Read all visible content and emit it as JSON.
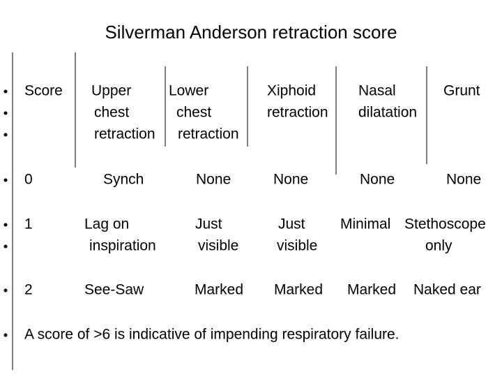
{
  "title": "Silverman Anderson retraction score",
  "table": {
    "header": [
      [
        "Score"
      ],
      [
        "Upper",
        "chest",
        "retraction"
      ],
      [
        "Lower",
        "chest",
        "retraction"
      ],
      [
        "Xiphoid",
        "retraction"
      ],
      [
        "Nasal",
        "dilatation"
      ],
      [
        "Grunt"
      ]
    ],
    "rows": [
      [
        [
          "0"
        ],
        [
          "Synch"
        ],
        [
          "None"
        ],
        [
          "None"
        ],
        [
          "None"
        ],
        [
          "None"
        ]
      ],
      [
        [
          "1"
        ],
        [
          "Lag on",
          "inspiration"
        ],
        [
          "Just",
          "visible"
        ],
        [
          "Just",
          "visible"
        ],
        [
          "Minimal"
        ],
        [
          "Stethoscope",
          "only"
        ]
      ],
      [
        [
          "2"
        ],
        [
          "See-Saw"
        ],
        [
          "Marked"
        ],
        [
          "Marked"
        ],
        [
          "Marked"
        ],
        [
          "Naked ear"
        ]
      ]
    ]
  },
  "note": "A score of >6 is indicative of impending respiratory failure."
}
